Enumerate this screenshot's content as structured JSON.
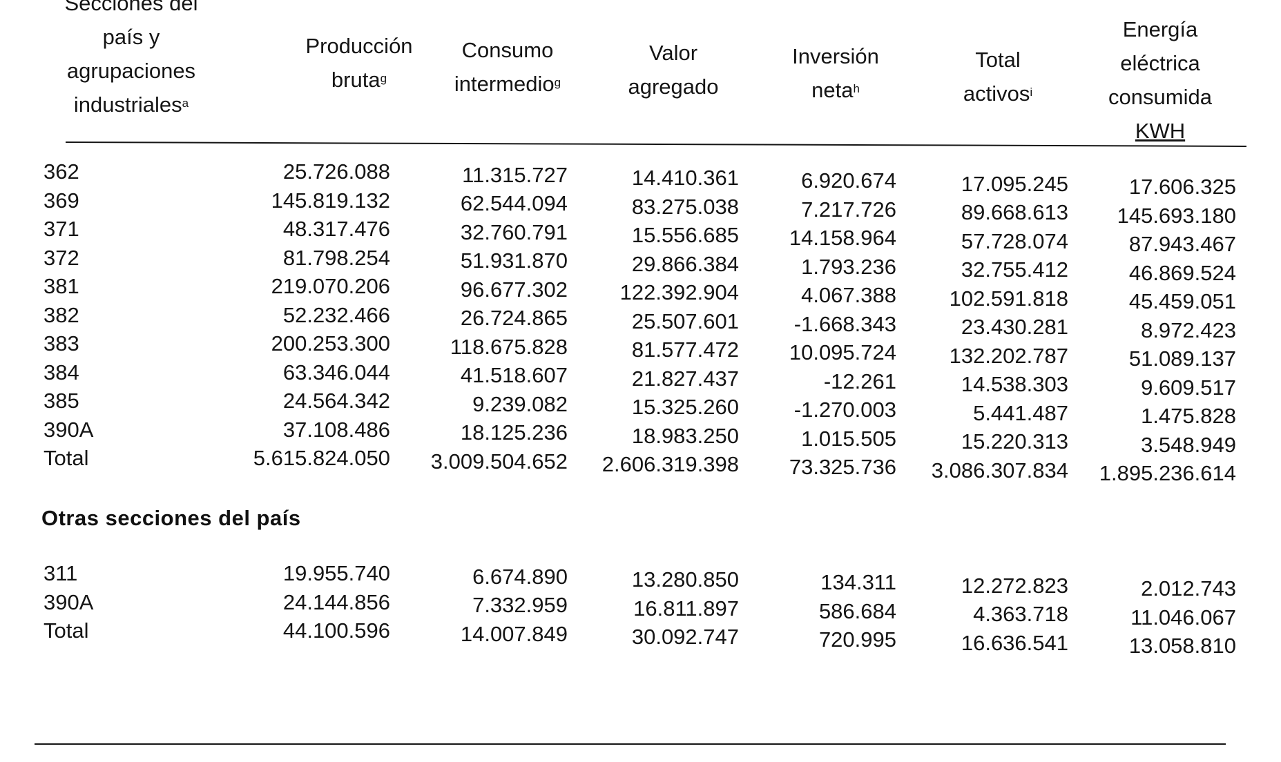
{
  "table": {
    "headers": {
      "section": [
        "Secciones del",
        "país y",
        "agrupaciones",
        "industriales"
      ],
      "section_sup": "a",
      "produccion": [
        "Producción",
        "bruta"
      ],
      "produccion_sup": "g",
      "consumo": [
        "Consumo",
        "intermedio"
      ],
      "consumo_sup": "g",
      "valor": [
        "Valor",
        "agregado"
      ],
      "inversion": [
        "Inversión",
        "neta"
      ],
      "inversion_sup": "h",
      "activos": [
        "Total",
        "activos"
      ],
      "activos_sup": "i",
      "energia": [
        "Energía",
        "eléctrica",
        "consumida",
        "KWH"
      ]
    },
    "group1": [
      {
        "code": "362",
        "produccion": "25.726.088",
        "consumo": "11.315.727",
        "valor": "14.410.361",
        "inversion": "6.920.674",
        "activos": "17.095.245",
        "energia": "17.606.325"
      },
      {
        "code": "369",
        "produccion": "145.819.132",
        "consumo": "62.544.094",
        "valor": "83.275.038",
        "inversion": "7.217.726",
        "activos": "89.668.613",
        "energia": "145.693.180"
      },
      {
        "code": "371",
        "produccion": "48.317.476",
        "consumo": "32.760.791",
        "valor": "15.556.685",
        "inversion": "14.158.964",
        "activos": "57.728.074",
        "energia": "87.943.467"
      },
      {
        "code": "372",
        "produccion": "81.798.254",
        "consumo": "51.931.870",
        "valor": "29.866.384",
        "inversion": "1.793.236",
        "activos": "32.755.412",
        "energia": "46.869.524"
      },
      {
        "code": "381",
        "produccion": "219.070.206",
        "consumo": "96.677.302",
        "valor": "122.392.904",
        "inversion": "4.067.388",
        "activos": "102.591.818",
        "energia": "45.459.051"
      },
      {
        "code": "382",
        "produccion": "52.232.466",
        "consumo": "26.724.865",
        "valor": "25.507.601",
        "inversion": "-1.668.343",
        "activos": "23.430.281",
        "energia": "8.972.423"
      },
      {
        "code": "383",
        "produccion": "200.253.300",
        "consumo": "118.675.828",
        "valor": "81.577.472",
        "inversion": "10.095.724",
        "activos": "132.202.787",
        "energia": "51.089.137"
      },
      {
        "code": "384",
        "produccion": "63.346.044",
        "consumo": "41.518.607",
        "valor": "21.827.437",
        "inversion": "-12.261",
        "activos": "14.538.303",
        "energia": "9.609.517"
      },
      {
        "code": "385",
        "produccion": "24.564.342",
        "consumo": "9.239.082",
        "valor": "15.325.260",
        "inversion": "-1.270.003",
        "activos": "5.441.487",
        "energia": "1.475.828"
      },
      {
        "code": "390A",
        "produccion": "37.108.486",
        "consumo": "18.125.236",
        "valor": "18.983.250",
        "inversion": "1.015.505",
        "activos": "15.220.313",
        "energia": "3.548.949"
      },
      {
        "code": "Total",
        "produccion": "5.615.824.050",
        "consumo": "3.009.504.652",
        "valor": "2.606.319.398",
        "inversion": "73.325.736",
        "activos": "3.086.307.834",
        "energia": "1.895.236.614"
      }
    ],
    "section2_title": "Otras secciones del país",
    "group2": [
      {
        "code": "311",
        "produccion": "19.955.740",
        "consumo": "6.674.890",
        "valor": "13.280.850",
        "inversion": "134.311",
        "activos": "12.272.823",
        "energia": "2.012.743"
      },
      {
        "code": "390A",
        "produccion": "24.144.856",
        "consumo": "7.332.959",
        "valor": "16.811.897",
        "inversion": "586.684",
        "activos": "4.363.718",
        "energia": "11.046.067"
      },
      {
        "code": "Total",
        "produccion": "44.100.596",
        "consumo": "14.007.849",
        "valor": "30.092.747",
        "inversion": "720.995",
        "activos": "16.636.541",
        "energia": "13.058.810"
      }
    ]
  }
}
